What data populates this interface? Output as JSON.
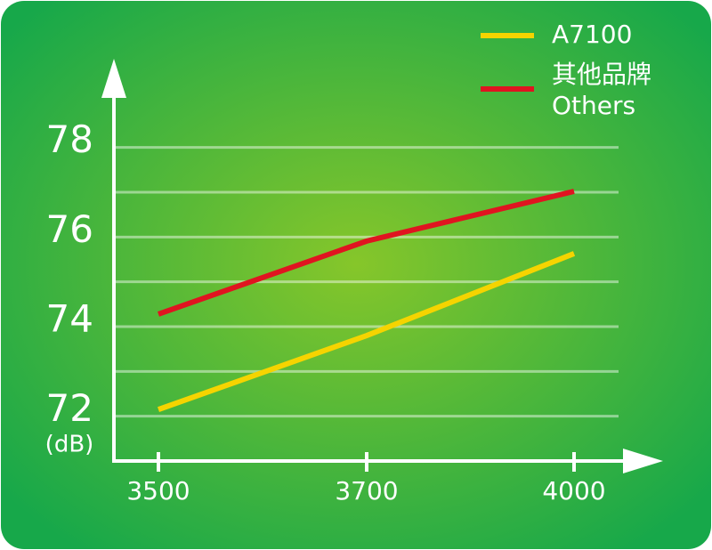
{
  "chart_data": {
    "type": "line",
    "categories": [
      "3500",
      "3700",
      "4000"
    ],
    "y_unit": "(dB)",
    "ylim": [
      71,
      80
    ],
    "yticks": [
      72,
      74,
      76,
      78
    ],
    "ygrid": [
      72,
      73,
      74,
      75,
      76,
      77,
      78
    ],
    "series": [
      {
        "name": "A7100",
        "color": "#f5d400",
        "values": [
          72.15,
          73.8,
          75.63
        ]
      },
      {
        "name": "其他品牌",
        "subname": "Others",
        "color": "#e01420",
        "values": [
          74.28,
          75.91,
          77.02
        ]
      }
    ]
  }
}
